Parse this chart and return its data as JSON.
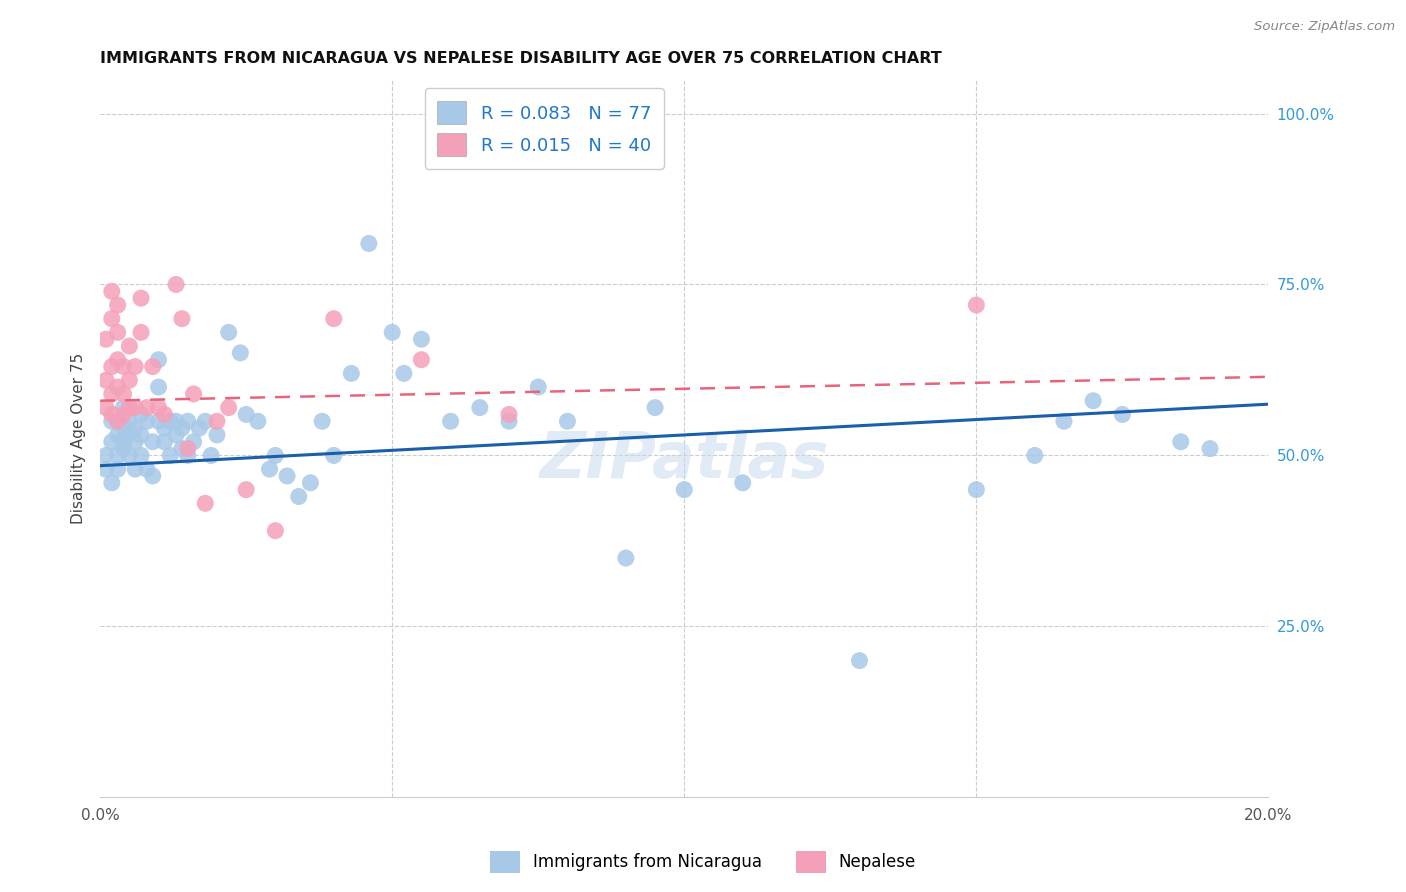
{
  "title": "IMMIGRANTS FROM NICARAGUA VS NEPALESE DISABILITY AGE OVER 75 CORRELATION CHART",
  "source": "Source: ZipAtlas.com",
  "ylabel": "Disability Age Over 75",
  "xlim": [
    0.0,
    0.2
  ],
  "ylim": [
    0.0,
    1.05
  ],
  "legend_label_blue": "Immigrants from Nicaragua",
  "legend_label_pink": "Nepalese",
  "R_blue": 0.083,
  "N_blue": 77,
  "R_pink": 0.015,
  "N_pink": 40,
  "blue_color": "#A8C8E8",
  "pink_color": "#F4A0B8",
  "blue_line_color": "#1A5FA8",
  "pink_line_color": "#E8647A",
  "background_color": "#FFFFFF",
  "watermark": "ZIPatlas",
  "blue_x": [
    0.001,
    0.001,
    0.002,
    0.002,
    0.002,
    0.003,
    0.003,
    0.003,
    0.003,
    0.004,
    0.004,
    0.004,
    0.004,
    0.005,
    0.005,
    0.005,
    0.006,
    0.006,
    0.006,
    0.007,
    0.007,
    0.007,
    0.008,
    0.008,
    0.009,
    0.009,
    0.01,
    0.01,
    0.01,
    0.011,
    0.011,
    0.012,
    0.012,
    0.013,
    0.013,
    0.014,
    0.014,
    0.015,
    0.015,
    0.016,
    0.017,
    0.018,
    0.019,
    0.02,
    0.022,
    0.024,
    0.025,
    0.027,
    0.029,
    0.03,
    0.032,
    0.034,
    0.036,
    0.038,
    0.04,
    0.043,
    0.046,
    0.05,
    0.052,
    0.055,
    0.06,
    0.065,
    0.07,
    0.075,
    0.08,
    0.09,
    0.095,
    0.1,
    0.11,
    0.13,
    0.15,
    0.16,
    0.165,
    0.17,
    0.175,
    0.185,
    0.19
  ],
  "blue_y": [
    0.5,
    0.48,
    0.52,
    0.55,
    0.46,
    0.53,
    0.5,
    0.55,
    0.48,
    0.54,
    0.52,
    0.57,
    0.51,
    0.53,
    0.55,
    0.5,
    0.52,
    0.54,
    0.48,
    0.56,
    0.53,
    0.5,
    0.48,
    0.55,
    0.52,
    0.47,
    0.55,
    0.64,
    0.6,
    0.54,
    0.52,
    0.55,
    0.5,
    0.55,
    0.53,
    0.54,
    0.51,
    0.5,
    0.55,
    0.52,
    0.54,
    0.55,
    0.5,
    0.53,
    0.68,
    0.65,
    0.56,
    0.55,
    0.48,
    0.5,
    0.47,
    0.44,
    0.46,
    0.55,
    0.5,
    0.62,
    0.81,
    0.68,
    0.62,
    0.67,
    0.55,
    0.57,
    0.55,
    0.6,
    0.55,
    0.35,
    0.57,
    0.45,
    0.46,
    0.2,
    0.45,
    0.5,
    0.55,
    0.58,
    0.56,
    0.52,
    0.51
  ],
  "pink_x": [
    0.001,
    0.001,
    0.001,
    0.002,
    0.002,
    0.002,
    0.002,
    0.002,
    0.003,
    0.003,
    0.003,
    0.003,
    0.003,
    0.004,
    0.004,
    0.004,
    0.005,
    0.005,
    0.005,
    0.006,
    0.006,
    0.007,
    0.007,
    0.008,
    0.009,
    0.01,
    0.011,
    0.013,
    0.014,
    0.015,
    0.016,
    0.018,
    0.02,
    0.022,
    0.025,
    0.03,
    0.04,
    0.055,
    0.07,
    0.15
  ],
  "pink_y": [
    0.57,
    0.61,
    0.67,
    0.56,
    0.59,
    0.63,
    0.7,
    0.74,
    0.55,
    0.6,
    0.64,
    0.68,
    0.72,
    0.56,
    0.59,
    0.63,
    0.57,
    0.61,
    0.66,
    0.57,
    0.63,
    0.68,
    0.73,
    0.57,
    0.63,
    0.57,
    0.56,
    0.75,
    0.7,
    0.51,
    0.59,
    0.43,
    0.55,
    0.57,
    0.45,
    0.39,
    0.7,
    0.64,
    0.56,
    0.72
  ],
  "blue_line_x0": 0.0,
  "blue_line_y0": 0.485,
  "blue_line_x1": 0.2,
  "blue_line_y1": 0.575,
  "pink_line_x0": 0.0,
  "pink_line_y0": 0.58,
  "pink_line_x1": 0.2,
  "pink_line_y1": 0.615
}
